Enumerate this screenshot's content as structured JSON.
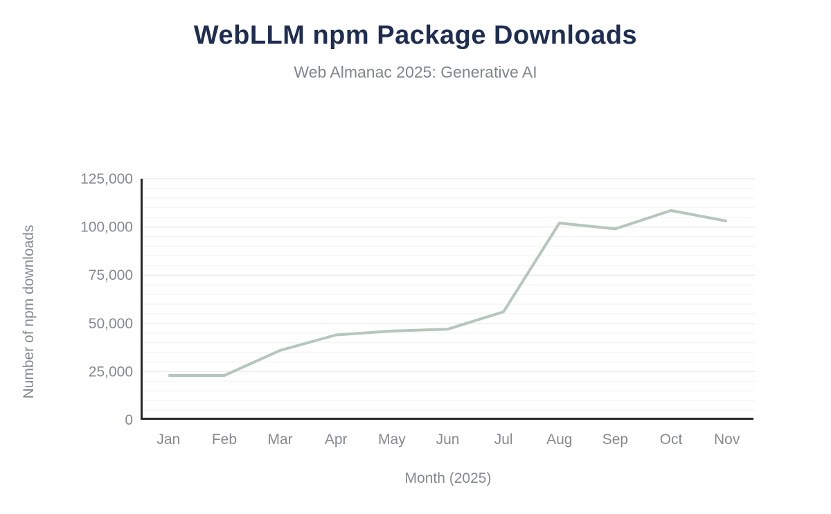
{
  "header": {
    "title": "WebLLM npm Package Downloads",
    "subtitle": "Web Almanac 2025: Generative AI"
  },
  "chart_data": {
    "type": "line",
    "title": "WebLLM npm Package Downloads",
    "subtitle": "Web Almanac 2025: Generative AI",
    "categories": [
      "Jan",
      "Feb",
      "Mar",
      "Apr",
      "May",
      "Jun",
      "Jul",
      "Aug",
      "Sep",
      "Oct",
      "Nov"
    ],
    "values": [
      23000,
      23000,
      36000,
      44000,
      46000,
      47000,
      56000,
      102000,
      99000,
      108500,
      103000
    ],
    "xlabel": "Month (2025)",
    "ylabel": "Number of npm downloads",
    "ylim": [
      0,
      125000
    ],
    "ytick_step": 25000,
    "ytick_labels": [
      "0",
      "25,000",
      "50,000",
      "75,000",
      "100,000",
      "125,000"
    ],
    "minor_gridline_step": 5000,
    "grid": true,
    "legend": "none",
    "colors": {
      "line": "#b5c7bb",
      "axis": "#262626",
      "tick_label": "#85898f",
      "axis_title": "#85898f",
      "title": "#1e2d50",
      "subtitle": "#7f868c",
      "gridline_minor": "#f5f5f5",
      "gridline_major": "#ececec",
      "background": "#ffffff"
    }
  }
}
